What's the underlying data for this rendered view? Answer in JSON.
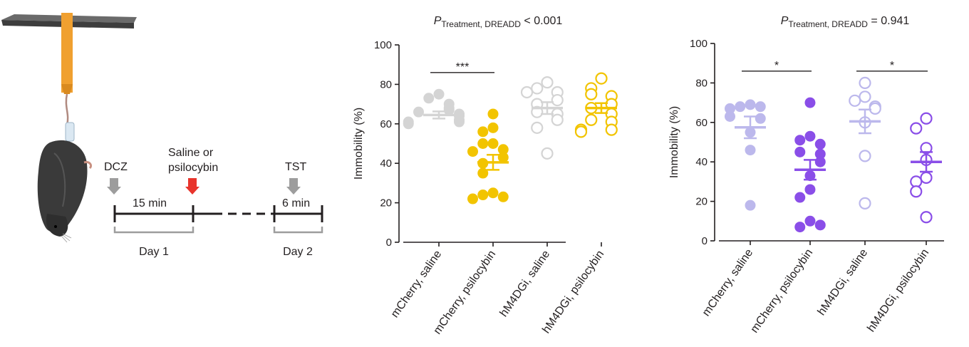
{
  "schematic": {
    "dcz_label": "DCZ",
    "injection_label_line1": "Saline or",
    "injection_label_line2": "psilocybin",
    "tst_label": "TST",
    "interval_1": "15 min",
    "interval_2": "6 min",
    "day_1": "Day 1",
    "day_2": "Day 2",
    "arrow_colors": {
      "dcz": "#9d9d9d",
      "injection": "#e8342c",
      "tst": "#9d9d9d"
    }
  },
  "chart_data": [
    {
      "type": "scatter",
      "title_main": "P",
      "title_sub": "Treatment, DREADD",
      "title_tail": " < 0.001",
      "ylabel": "Immobility (%)",
      "ylim": [
        0,
        100
      ],
      "yticks": [
        "0",
        "20",
        "40",
        "60",
        "80",
        "100"
      ],
      "categories": [
        "mCherry, saline",
        "mCherry, psilocybin",
        "hM4DGi, saline",
        "hM4DGi, psilocybin"
      ],
      "series": [
        {
          "color": "#d4d4d4",
          "filled": true,
          "mean": 64.5,
          "sem": 1.8,
          "values": [
            75,
            73,
            70,
            68,
            67,
            66,
            65,
            64,
            62,
            61,
            61,
            60
          ]
        },
        {
          "color": "#f2c400",
          "filled": true,
          "mean": 40.5,
          "sem": 3.8,
          "values": [
            65,
            58,
            56,
            50,
            50,
            47,
            46,
            43,
            40,
            35,
            25,
            24,
            23,
            22
          ]
        },
        {
          "color": "#d4d4d4",
          "filled": false,
          "mean": 68,
          "sem": 3,
          "values": [
            81,
            78,
            76,
            76,
            72,
            70,
            66,
            65,
            62,
            58,
            45
          ]
        },
        {
          "color": "#f2c400",
          "filled": false,
          "mean": 68,
          "sem": 2.5,
          "values": [
            83,
            78,
            75,
            74,
            70,
            68,
            65,
            62,
            61,
            57,
            57,
            56
          ]
        }
      ],
      "significance": [
        {
          "from": 0,
          "to": 1,
          "label": "***",
          "y": 86
        }
      ]
    },
    {
      "type": "scatter",
      "title_main": "P",
      "title_sub": "Treatment, DREADD",
      "title_tail": " = 0.941",
      "ylabel": "Immobility (%)",
      "ylim": [
        0,
        100
      ],
      "yticks": [
        "0",
        "20",
        "40",
        "60",
        "80",
        "100"
      ],
      "categories": [
        "mCherry, saline",
        "mCherry, psilocybin",
        "hM4DGi, saline",
        "hM4DGi, psilocybin"
      ],
      "series": [
        {
          "color": "#bcb8ec",
          "filled": true,
          "mean": 57.5,
          "sem": 5.5,
          "values": [
            69,
            68,
            68,
            67,
            63,
            62,
            55,
            46,
            18
          ]
        },
        {
          "color": "#8a4ee8",
          "filled": true,
          "mean": 36,
          "sem": 5,
          "values": [
            70,
            53,
            51,
            49,
            45,
            44,
            40,
            33,
            26,
            22,
            10,
            7,
            8
          ]
        },
        {
          "color": "#bcb8ec",
          "filled": false,
          "mean": 60.5,
          "sem": 6,
          "values": [
            80,
            73,
            71,
            68,
            67,
            60,
            43,
            19
          ]
        },
        {
          "color": "#8a4ee8",
          "filled": false,
          "mean": 40,
          "sem": 5,
          "values": [
            62,
            57,
            47,
            41,
            32,
            30,
            25,
            12
          ]
        }
      ],
      "significance": [
        {
          "from": 0,
          "to": 1,
          "label": "*",
          "y": 86
        },
        {
          "from": 2,
          "to": 3,
          "label": "*",
          "y": 86
        }
      ]
    }
  ]
}
